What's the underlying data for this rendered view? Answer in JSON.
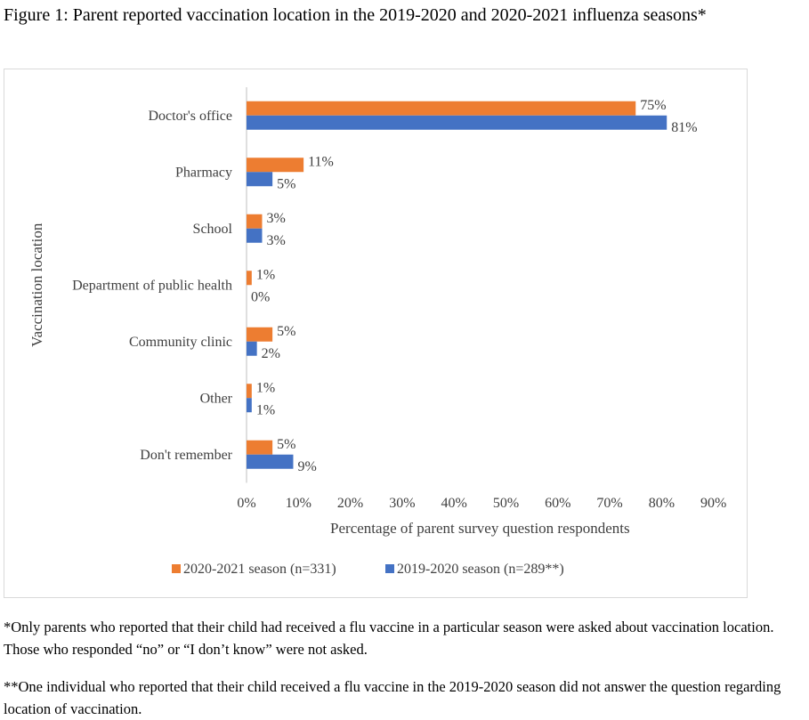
{
  "figure_title": "Figure 1: Parent reported vaccination location in the 2019-2020 and 2020-2021 influenza seasons*",
  "footnotes": [
    "*Only parents who reported that their child had received a flu vaccine in a particular season were asked about vaccination location. Those who responded “no” or “I don’t know” were not asked.",
    "**One individual who reported that their child received a flu vaccine in the 2019-2020 season did not answer the question regarding location of vaccination."
  ],
  "chart_data": {
    "type": "bar",
    "orientation": "horizontal",
    "categories": [
      "Doctor's office",
      "Pharmacy",
      "School",
      "Department of public health",
      "Community clinic",
      "Other",
      "Don't remember"
    ],
    "series": [
      {
        "name": "2020-2021 season (n=331)",
        "color": "#ed7d31",
        "values": [
          75,
          11,
          3,
          1,
          5,
          1,
          5
        ],
        "labels": [
          "75%",
          "11%",
          "3%",
          "1%",
          "5%",
          "1%",
          "5%"
        ]
      },
      {
        "name": "2019-2020 season (n=289**)",
        "color": "#4472c4",
        "values": [
          81,
          5,
          3,
          0,
          2,
          1,
          9
        ],
        "labels": [
          "81%",
          "5%",
          "3%",
          "0%",
          "2%",
          "1%",
          "9%"
        ]
      }
    ],
    "xlabel": "Percentage of parent survey question respondents",
    "ylabel": "Vaccination location",
    "xlim": [
      0,
      90
    ],
    "xticks": [
      0,
      10,
      20,
      30,
      40,
      50,
      60,
      70,
      80,
      90
    ],
    "xtick_labels": [
      "0%",
      "10%",
      "20%",
      "30%",
      "40%",
      "50%",
      "60%",
      "70%",
      "80%",
      "90%"
    ],
    "grid": false,
    "legend_position": "bottom"
  }
}
